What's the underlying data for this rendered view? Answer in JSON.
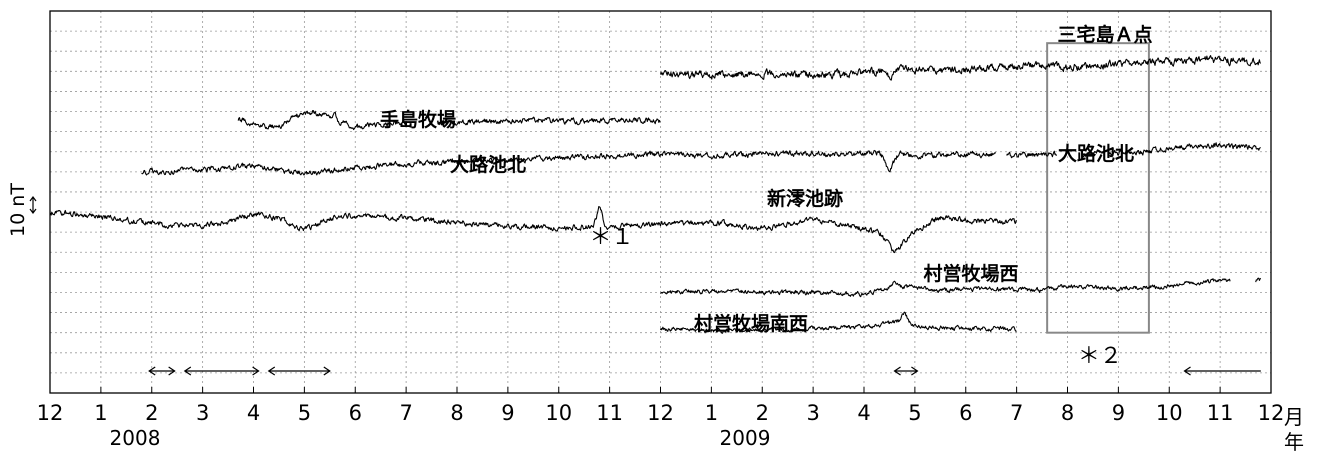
{
  "chart_data": {
    "type": "line",
    "x_tick_labels": [
      "12",
      "1",
      "2",
      "3",
      "4",
      "5",
      "6",
      "7",
      "8",
      "9",
      "10",
      "11",
      "12",
      "1",
      "2",
      "3",
      "4",
      "5",
      "6",
      "7",
      "8",
      "9",
      "10",
      "11",
      "12"
    ],
    "x_unit_label_top": "月",
    "x_unit_label_bottom": "年",
    "year_labels": [
      "2008",
      "2009"
    ],
    "y_scale_label": "10 nT",
    "grid": true,
    "series": [
      {
        "name": "三宅島Ａ点",
        "color": "#000000",
        "start": 12.0,
        "end": 23.8,
        "base": -6.9,
        "amp": 0.2,
        "points": [
          [
            12.0,
            -6.9
          ],
          [
            13.0,
            -6.8
          ],
          [
            14.0,
            -6.9
          ],
          [
            15.0,
            -6.8
          ],
          [
            16.0,
            -6.9
          ],
          [
            16.8,
            -7.2
          ],
          [
            17.5,
            -7.0
          ],
          [
            18.5,
            -7.2
          ],
          [
            19.5,
            -7.3
          ],
          [
            20.5,
            -7.2
          ],
          [
            21.0,
            -7.4
          ],
          [
            22.0,
            -7.5
          ],
          [
            22.8,
            -7.6
          ],
          [
            23.8,
            -7.4
          ]
        ],
        "features": [
          [
            16.5,
            0.3,
            0.1
          ]
        ]
      },
      {
        "name": "手島牧場",
        "color": "#000000",
        "start": 3.7,
        "end": 12.0,
        "base": -4.5,
        "amp": 0.15,
        "gaps": [
          [
            7.0,
            7.6
          ]
        ],
        "points": [
          [
            3.7,
            -4.6
          ],
          [
            4.0,
            -4.4
          ],
          [
            4.5,
            -4.2
          ],
          [
            4.8,
            -4.8
          ],
          [
            5.2,
            -5.0
          ],
          [
            5.6,
            -4.6
          ],
          [
            6.0,
            -4.2
          ],
          [
            6.6,
            -4.4
          ],
          [
            7.0,
            -4.5
          ],
          [
            7.6,
            -4.4
          ],
          [
            8.5,
            -4.5
          ],
          [
            9.5,
            -4.6
          ],
          [
            10.5,
            -4.5
          ],
          [
            11.5,
            -4.6
          ],
          [
            12.0,
            -4.5
          ]
        ],
        "features": [
          [
            5.6,
            -0.3,
            0.05
          ]
        ]
      },
      {
        "name": "大路池北",
        "color": "#000000",
        "start": 1.8,
        "end": 23.8,
        "base": -2.0,
        "amp": 0.15,
        "gaps": [
          [
            18.6,
            18.8
          ],
          [
            19.8,
            20.3
          ],
          [
            20.6,
            20.8
          ]
        ],
        "points": [
          [
            1.8,
            -2.0
          ],
          [
            3.0,
            -2.1
          ],
          [
            4.0,
            -2.3
          ],
          [
            4.5,
            -2.1
          ],
          [
            5.0,
            -1.9
          ],
          [
            6.0,
            -2.2
          ],
          [
            7.0,
            -2.4
          ],
          [
            8.0,
            -2.5
          ],
          [
            9.0,
            -2.6
          ],
          [
            10.0,
            -2.7
          ],
          [
            11.0,
            -2.8
          ],
          [
            12.0,
            -2.9
          ],
          [
            13.0,
            -2.8
          ],
          [
            14.0,
            -2.9
          ],
          [
            15.0,
            -2.9
          ],
          [
            16.0,
            -2.9
          ],
          [
            16.5,
            -3.0
          ],
          [
            17.0,
            -2.8
          ],
          [
            18.0,
            -2.9
          ],
          [
            19.0,
            -2.8
          ],
          [
            20.0,
            -2.9
          ],
          [
            20.8,
            -2.9
          ],
          [
            21.5,
            -3.0
          ],
          [
            22.0,
            -3.2
          ],
          [
            23.0,
            -3.3
          ],
          [
            23.8,
            -3.2
          ]
        ],
        "features": [
          [
            16.5,
            0.8,
            0.12
          ]
        ]
      },
      {
        "name": "新澪池跡",
        "color": "#000000",
        "start": 0.0,
        "end": 19.0,
        "base": -0.2,
        "amp": 0.15,
        "points": [
          [
            0.0,
            0.0
          ],
          [
            1.0,
            0.2
          ],
          [
            1.8,
            0.5
          ],
          [
            2.6,
            0.7
          ],
          [
            3.3,
            0.6
          ],
          [
            4.0,
            0.1
          ],
          [
            4.5,
            0.3
          ],
          [
            5.0,
            0.9
          ],
          [
            5.5,
            0.3
          ],
          [
            6.0,
            0.2
          ],
          [
            7.0,
            0.3
          ],
          [
            8.0,
            0.5
          ],
          [
            9.0,
            0.7
          ],
          [
            10.0,
            0.8
          ],
          [
            11.0,
            0.7
          ],
          [
            12.0,
            0.6
          ],
          [
            13.0,
            0.5
          ],
          [
            14.0,
            0.8
          ],
          [
            15.0,
            0.4
          ],
          [
            16.0,
            0.8
          ],
          [
            16.3,
            1.0
          ],
          [
            16.6,
            2.0
          ],
          [
            17.0,
            0.9
          ],
          [
            17.5,
            0.3
          ],
          [
            18.0,
            0.4
          ],
          [
            19.0,
            0.5
          ]
        ],
        "features": [
          [
            10.8,
            -0.9,
            0.08
          ]
        ]
      },
      {
        "name": "村営牧場西",
        "color": "#000000",
        "start": 12.0,
        "end": 23.8,
        "base": 4.0,
        "amp": 0.12,
        "points": [
          [
            12.0,
            4.0
          ],
          [
            13.0,
            3.9
          ],
          [
            14.0,
            4.0
          ],
          [
            15.0,
            4.0
          ],
          [
            16.0,
            4.1
          ],
          [
            16.5,
            3.8
          ],
          [
            16.8,
            3.7
          ],
          [
            17.5,
            3.9
          ],
          [
            18.5,
            3.8
          ],
          [
            19.5,
            3.9
          ],
          [
            20.0,
            3.7
          ],
          [
            21.0,
            3.8
          ],
          [
            22.0,
            3.7
          ],
          [
            22.5,
            3.5
          ],
          [
            23.0,
            3.4
          ],
          [
            23.2,
            3.4
          ]
        ],
        "gaps": [
          [
            23.2,
            23.7
          ]
        ],
        "features": [
          [
            16.6,
            -0.3,
            0.06
          ]
        ]
      },
      {
        "name": "村営牧場南西",
        "color": "#000000",
        "start": 12.0,
        "end": 19.0,
        "base": 5.9,
        "amp": 0.12,
        "points": [
          [
            12.0,
            5.8
          ],
          [
            13.0,
            5.9
          ],
          [
            14.0,
            5.9
          ],
          [
            15.0,
            5.8
          ],
          [
            16.0,
            5.7
          ],
          [
            16.6,
            5.5
          ],
          [
            16.8,
            5.3
          ],
          [
            17.0,
            5.7
          ],
          [
            18.0,
            5.8
          ],
          [
            19.0,
            5.8
          ]
        ],
        "features": [
          [
            16.8,
            -0.3,
            0.06
          ]
        ]
      }
    ],
    "annotations": [
      {
        "text": "＊１",
        "x": 10.8,
        "y": 1.2
      },
      {
        "text": "＊２",
        "x": 20.4,
        "y": 7.1
      }
    ],
    "highlight_box": {
      "x0": 19.6,
      "x1": 21.6,
      "y0": -8.4,
      "y1": 6.0,
      "color": "#888888"
    },
    "interval_arrows": [
      {
        "x0": 1.95,
        "x1": 2.45,
        "type": "double"
      },
      {
        "x0": 2.65,
        "x1": 4.1,
        "type": "double"
      },
      {
        "x0": 4.3,
        "x1": 5.5,
        "type": "double"
      },
      {
        "x0": 16.6,
        "x1": 17.05,
        "type": "double"
      },
      {
        "x0": 22.3,
        "x1": 23.8,
        "type": "left"
      }
    ],
    "axis_color": "#000000",
    "grid_color": "#9a9a9a"
  }
}
